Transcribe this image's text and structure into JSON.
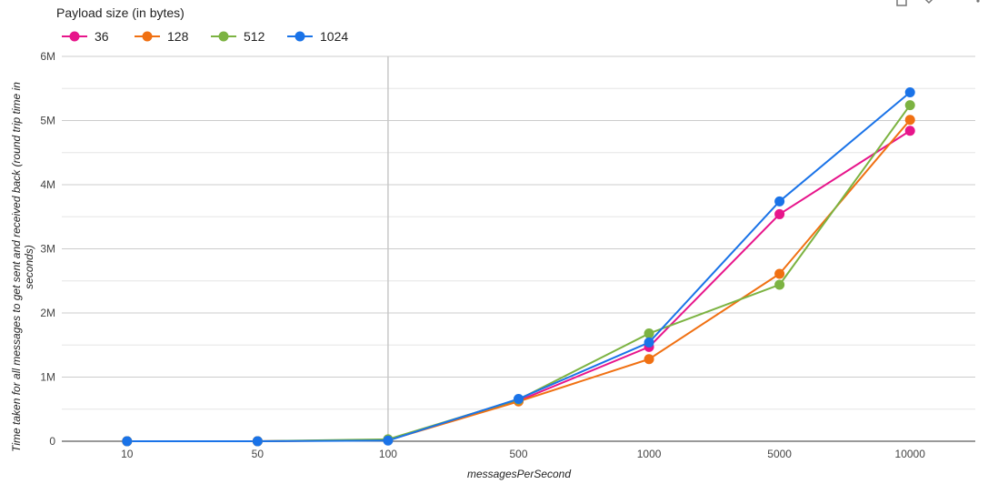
{
  "chart_data": {
    "type": "line",
    "legend_title": "Payload size (in bytes)",
    "legend_position": "top-left",
    "categories": [
      "10",
      "50",
      "100",
      "500",
      "1000",
      "5000",
      "10000"
    ],
    "series": [
      {
        "name": "36",
        "color": "#e7158b",
        "values": [
          0,
          0,
          20000,
          630000,
          1470000,
          3540000,
          4840000
        ]
      },
      {
        "name": "128",
        "color": "#f07012",
        "values": [
          0,
          0,
          15000,
          620000,
          1280000,
          2610000,
          5010000
        ]
      },
      {
        "name": "512",
        "color": "#7cb342",
        "values": [
          0,
          0,
          30000,
          650000,
          1680000,
          2440000,
          5240000
        ]
      },
      {
        "name": "1024",
        "color": "#1a73e8",
        "values": [
          0,
          0,
          10000,
          660000,
          1540000,
          3740000,
          5440000
        ]
      }
    ],
    "xlabel": "messagesPerSecond",
    "ylabel_lines": [
      "Time taken for all messages to get sent and received back (round trip time in",
      "seconds)"
    ],
    "ylim": [
      0,
      6000000
    ],
    "y_ticks": [
      {
        "value": 0,
        "label": "0"
      },
      {
        "value": 1000000,
        "label": "1M"
      },
      {
        "value": 2000000,
        "label": "2M"
      },
      {
        "value": 3000000,
        "label": "3M"
      },
      {
        "value": 4000000,
        "label": "4M"
      },
      {
        "value": 5000000,
        "label": "5M"
      },
      {
        "value": 6000000,
        "label": "6M"
      }
    ],
    "highlighted_category": "100",
    "grid": true
  }
}
